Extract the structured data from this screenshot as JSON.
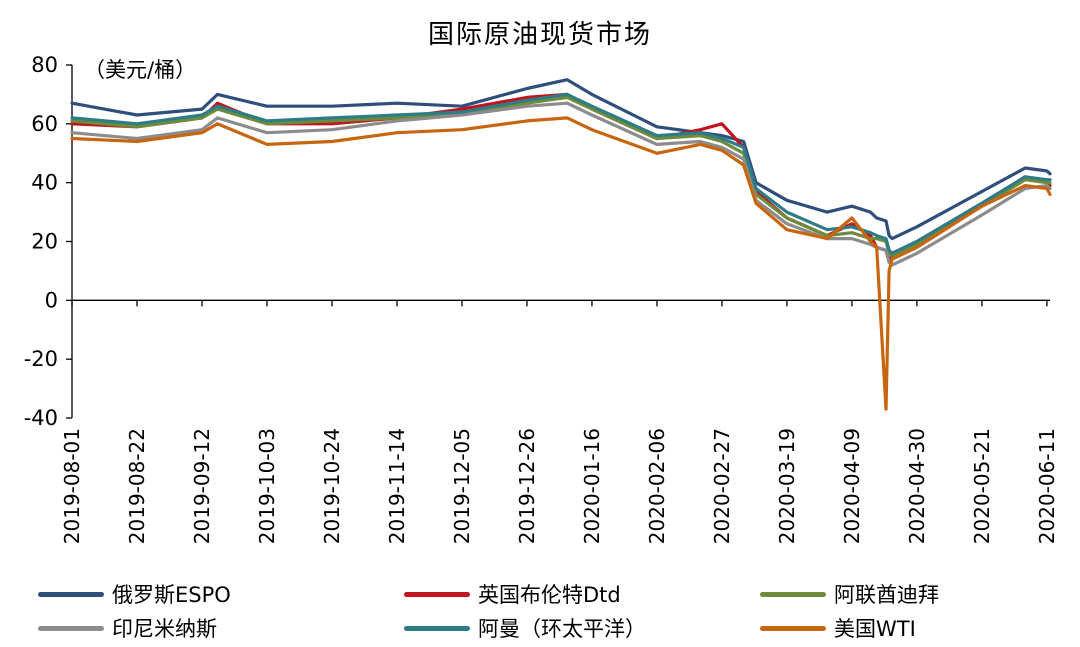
{
  "chart_data": {
    "type": "line",
    "title": "国际原油现货市场",
    "ylabel": "（美元/桶）",
    "xlabel": "",
    "ylim": [
      -40,
      80
    ],
    "yticks": [
      "80",
      "60",
      "40",
      "20",
      "0",
      "-20",
      "-40"
    ],
    "xtick_labels": [
      "2019-08-01",
      "2019-08-22",
      "2019-09-12",
      "2019-10-03",
      "2019-10-24",
      "2019-11-14",
      "2019-12-05",
      "2019-12-26",
      "2020-01-16",
      "2020-02-06",
      "2020-02-27",
      "2020-03-19",
      "2020-04-09",
      "2020-04-30",
      "2020-05-21",
      "2020-06-11"
    ],
    "grid": false,
    "legend_position": "bottom",
    "x": [
      "2019-08-01",
      "2019-08-22",
      "2019-09-12",
      "2019-09-17",
      "2019-10-03",
      "2019-10-24",
      "2019-11-14",
      "2019-12-05",
      "2019-12-26",
      "2020-01-08",
      "2020-01-16",
      "2020-02-06",
      "2020-02-20",
      "2020-02-27",
      "2020-03-05",
      "2020-03-09",
      "2020-03-19",
      "2020-04-01",
      "2020-04-09",
      "2020-04-15",
      "2020-04-17",
      "2020-04-20",
      "2020-04-21",
      "2020-04-22",
      "2020-04-30",
      "2020-05-21",
      "2020-06-04",
      "2020-06-11",
      "2020-06-12"
    ],
    "series": [
      {
        "name": "俄罗斯ESPO",
        "color": "#2f4e7c",
        "values": [
          67,
          63,
          65,
          70,
          66,
          66,
          67,
          66,
          72,
          75,
          70,
          59,
          57,
          56,
          54,
          40,
          34,
          30,
          32,
          30,
          28,
          27,
          22,
          21,
          25,
          37,
          45,
          44,
          43
        ]
      },
      {
        "name": "英国布伦特Dtd",
        "color": "#c0141e",
        "values": [
          60,
          59,
          62,
          67,
          60,
          60,
          62,
          65,
          69,
          70,
          65,
          55,
          58,
          60,
          52,
          37,
          28,
          22,
          26,
          22,
          18,
          17,
          13,
          16,
          20,
          33,
          42,
          40,
          39
        ]
      },
      {
        "name": "阿联酋迪拜",
        "color": "#6d8b3a",
        "values": [
          61,
          59,
          62,
          65,
          60,
          61,
          62,
          64,
          67,
          69,
          65,
          55,
          56,
          54,
          50,
          36,
          28,
          22,
          23,
          21,
          21,
          20,
          16,
          15,
          19,
          32,
          41,
          40,
          40
        ]
      },
      {
        "name": "印尼米纳斯",
        "color": "#8c8c8c",
        "values": [
          57,
          55,
          58,
          62,
          57,
          58,
          61,
          63,
          66,
          67,
          63,
          53,
          54,
          52,
          48,
          34,
          26,
          21,
          21,
          19,
          18,
          17,
          13,
          12,
          16,
          29,
          38,
          39,
          38
        ]
      },
      {
        "name": "阿曼（环太平洋）",
        "color": "#2e7d86",
        "values": [
          62,
          60,
          63,
          66,
          61,
          62,
          63,
          64,
          68,
          70,
          66,
          56,
          57,
          55,
          52,
          38,
          30,
          24,
          25,
          23,
          22,
          21,
          17,
          16,
          20,
          33,
          42,
          41,
          41
        ]
      },
      {
        "name": "美国WTI",
        "color": "#c8650f",
        "values": [
          55,
          54,
          57,
          60,
          53,
          54,
          57,
          58,
          61,
          62,
          58,
          50,
          53,
          51,
          46,
          33,
          24,
          21,
          28,
          20,
          18,
          -37,
          10,
          14,
          18,
          32,
          39,
          38,
          36
        ]
      }
    ]
  }
}
